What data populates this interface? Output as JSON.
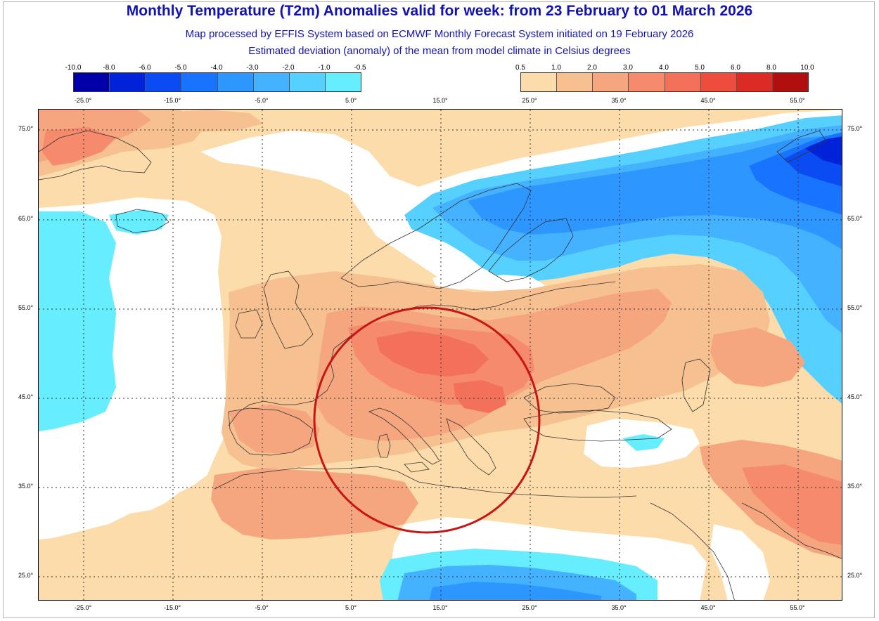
{
  "title": "Monthly Temperature (T2m) Anomalies valid for week: from 23 February to 01 March 2026",
  "subtitle1": "Map processed by EFFIS System based on ECMWF Monthly Forecast System initiated on 19 February 2026",
  "subtitle2": "Estimated deviation (anomaly) of the mean from model climate in Celsius degrees",
  "colorbar_negative": {
    "labels": [
      "-10.0",
      "-8.0",
      "-6.0",
      "-5.0",
      "-4.0",
      "-3.0",
      "-2.0",
      "-1.0",
      "-0.5"
    ],
    "colors": [
      "#0000a8",
      "#0022d8",
      "#0a4cf2",
      "#1873ff",
      "#2e96ff",
      "#45b2ff",
      "#55d0ff",
      "#66eeff"
    ]
  },
  "colorbar_positive": {
    "labels": [
      "0.5",
      "1.0",
      "2.0",
      "3.0",
      "4.0",
      "5.0",
      "6.0",
      "8.0",
      "10.0"
    ],
    "colors": [
      "#fcdcaa",
      "#f7c090",
      "#f5a67e",
      "#f58a6c",
      "#f3705a",
      "#ee4c3d",
      "#dc2a24",
      "#b10e0e"
    ]
  },
  "lon_labels_top": [
    "-25.0°",
    "-15.0°",
    "-5.0°",
    "5.0°",
    "15.0°",
    "25.0°",
    "35.0°",
    "45.0°",
    "55.0°"
  ],
  "lon_labels_bottom": [
    "-25.0°",
    "-15.0°",
    "-5.0°",
    "5.0°",
    "15.0°",
    "25.0°",
    "35.0°",
    "45.0°",
    "55.0°"
  ],
  "lat_labels": [
    "75.0°",
    "65.0°",
    "55.0°",
    "45.0°",
    "35.0°",
    "25.0°"
  ],
  "colors": {
    "title": "#1212b0",
    "circle": "#c81414",
    "gridline": "#333333",
    "coastline": "#333333"
  }
}
